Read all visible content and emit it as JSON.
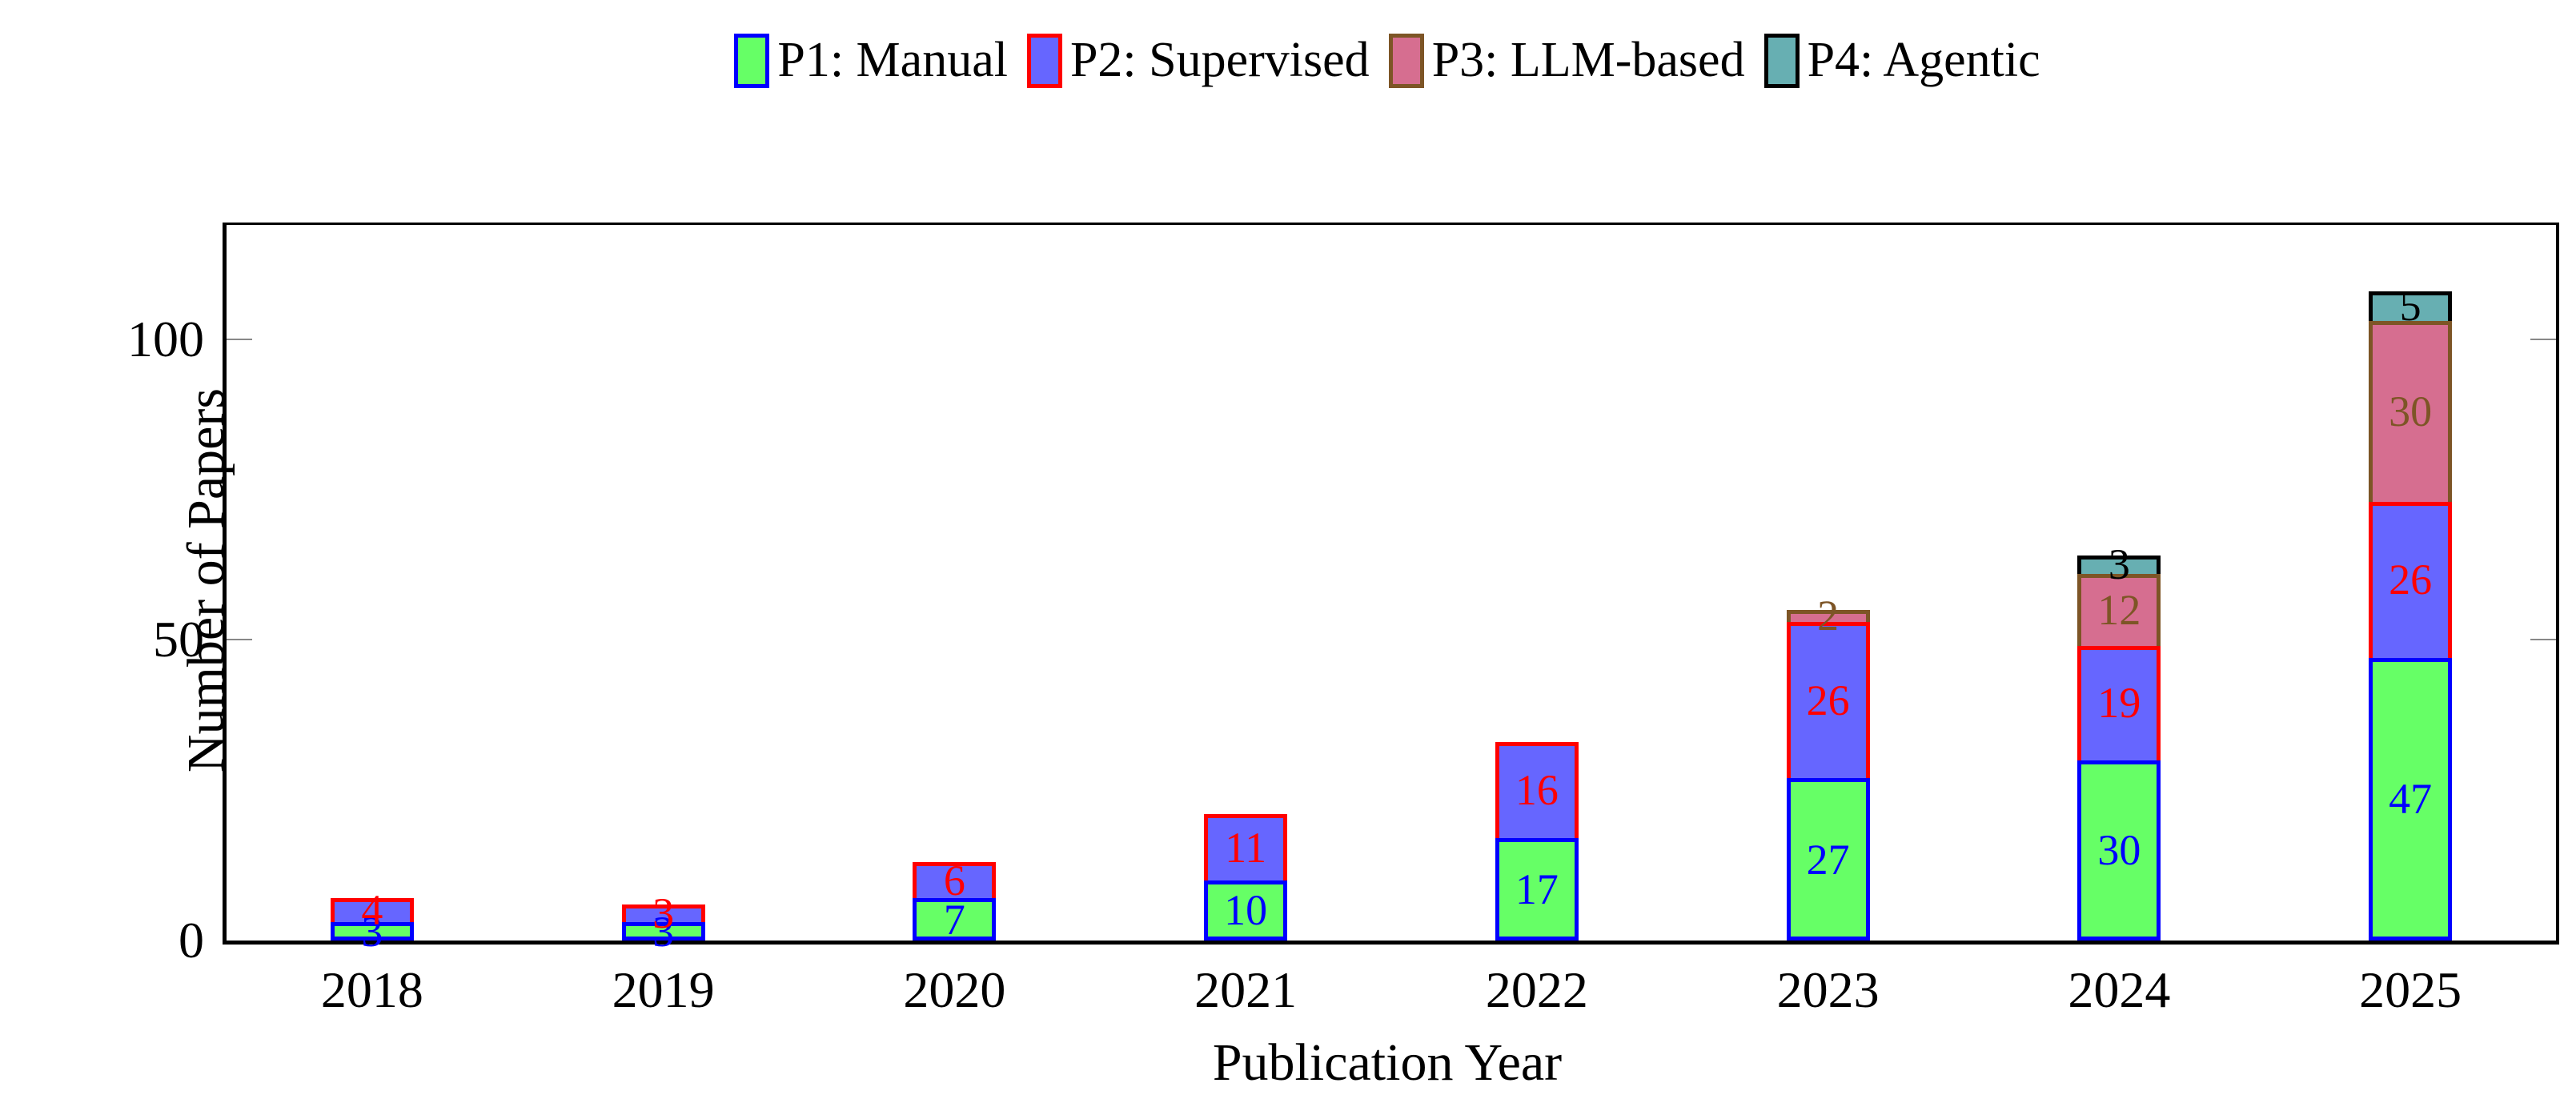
{
  "chart_data": {
    "type": "bar",
    "stacked": true,
    "xlabel": "Publication Year",
    "ylabel": "Number of Papers",
    "categories": [
      "2018",
      "2019",
      "2020",
      "2021",
      "2022",
      "2023",
      "2024",
      "2025"
    ],
    "series": [
      {
        "name": "P1: Manual",
        "fill": "#66FF66",
        "stroke": "#0000FF",
        "label_color": "#0000FF",
        "values": [
          3,
          3,
          7,
          10,
          17,
          27,
          30,
          47
        ]
      },
      {
        "name": "P2: Supervised",
        "fill": "#6666FF",
        "stroke": "#FF0000",
        "label_color": "#FF0000",
        "values": [
          4,
          3,
          6,
          11,
          16,
          26,
          19,
          26
        ]
      },
      {
        "name": "P3: LLM-based",
        "fill": "#D66E90",
        "stroke": "#7D5526",
        "label_color": "#7D5526",
        "values": [
          0,
          0,
          0,
          0,
          0,
          2,
          12,
          30
        ]
      },
      {
        "name": "P4: Agentic",
        "fill": "#67AFB2",
        "stroke": "#000000",
        "label_color": "#000000",
        "values": [
          0,
          0,
          0,
          0,
          0,
          0,
          3,
          5
        ]
      }
    ],
    "totals": [
      7,
      6,
      13,
      21,
      33,
      55,
      64,
      108
    ],
    "yticks": [
      0,
      50,
      100
    ],
    "ylim": [
      0,
      119
    ],
    "grid": false,
    "legend_position": "top-center",
    "axis_color": "#000000",
    "tick_color": "#888888",
    "background": "#FFFFFF"
  }
}
